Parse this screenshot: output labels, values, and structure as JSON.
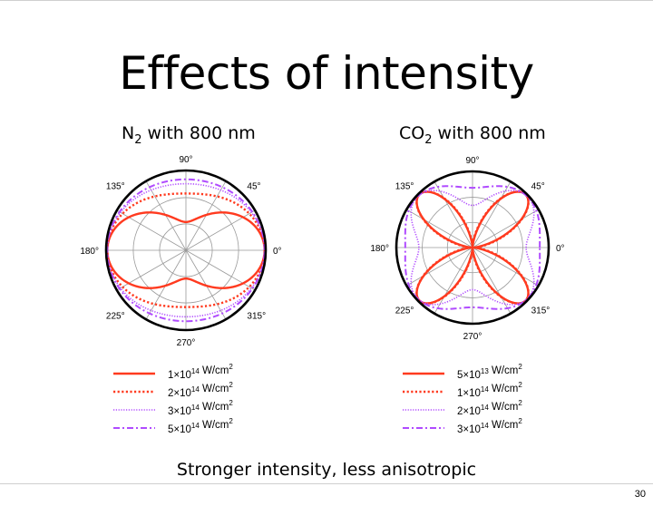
{
  "slide": {
    "title": "Effects of intensity",
    "caption": "Stronger intensity, less anisotropic",
    "page_number": "30"
  },
  "chart_data": [
    {
      "type": "polar",
      "title_main": "N",
      "title_sub": "2",
      "title_rest": " with 800 nm",
      "angle_ticks": [
        "0°",
        "45°",
        "90°",
        "135°",
        "180°",
        "225°",
        "270°",
        "315°"
      ],
      "series": [
        {
          "name_base": "1×10",
          "name_exp": "14",
          "name_unit": " W/cm",
          "name_unit_exp": "2",
          "style": "solid",
          "color": "#ff3a1f",
          "model": {
            "form": "peanut",
            "a": 1.0,
            "dip": 0.6
          }
        },
        {
          "name_base": "2×10",
          "name_exp": "14",
          "name_unit": " W/cm",
          "name_unit_exp": "2",
          "style": "dotted-red",
          "color": "#ff3a1f",
          "model": {
            "form": "peanut",
            "a": 1.0,
            "dip": 0.85
          }
        },
        {
          "name_base": "3×10",
          "name_exp": "14",
          "name_unit": " W/cm",
          "name_unit_exp": "2",
          "style": "dotted-purple",
          "color": "#b04bff",
          "model": {
            "form": "peanut",
            "a": 1.0,
            "dip": 0.92
          }
        },
        {
          "name_base": "5×10",
          "name_exp": "14",
          "name_unit": " W/cm",
          "name_unit_exp": "2",
          "style": "dashdot",
          "color": "#b04bff",
          "model": {
            "form": "peanut",
            "a": 1.0,
            "dip": 0.95
          }
        }
      ]
    },
    {
      "type": "polar",
      "title_main": "CO",
      "title_sub": "2",
      "title_rest": " with 800 nm",
      "angle_ticks": [
        "0°",
        "45°",
        "90°",
        "135°",
        "180°",
        "225°",
        "270°",
        "315°"
      ],
      "series": [
        {
          "name_base": "5×10",
          "name_exp": "13",
          "name_unit": " W/cm",
          "name_unit_exp": "2",
          "style": "solid",
          "color": "#ff3a1f",
          "model": {
            "form": "butterfly",
            "c0": 0.0,
            "c1": 0.0,
            "c2": 1.0
          }
        },
        {
          "name_base": "1×10",
          "name_exp": "14",
          "name_unit": " W/cm",
          "name_unit_exp": "2",
          "style": "dotted-red",
          "color": "#ff3a1f",
          "model": {
            "form": "butterfly",
            "c0": 0.05,
            "c1": 0.0,
            "c2": 1.0
          }
        },
        {
          "name_base": "2×10",
          "name_exp": "14",
          "name_unit": " W/cm",
          "name_unit_exp": "2",
          "style": "dotted-purple",
          "color": "#b04bff",
          "model": {
            "form": "butterfly",
            "c0": 0.55,
            "c1": 0.15,
            "c2": 0.35
          }
        },
        {
          "name_base": "3×10",
          "name_exp": "14",
          "name_unit": " W/cm",
          "name_unit_exp": "2",
          "style": "dashdot",
          "color": "#b04bff",
          "model": {
            "form": "butterfly",
            "c0": 0.8,
            "c1": 0.1,
            "c2": 0.15
          }
        }
      ]
    }
  ]
}
